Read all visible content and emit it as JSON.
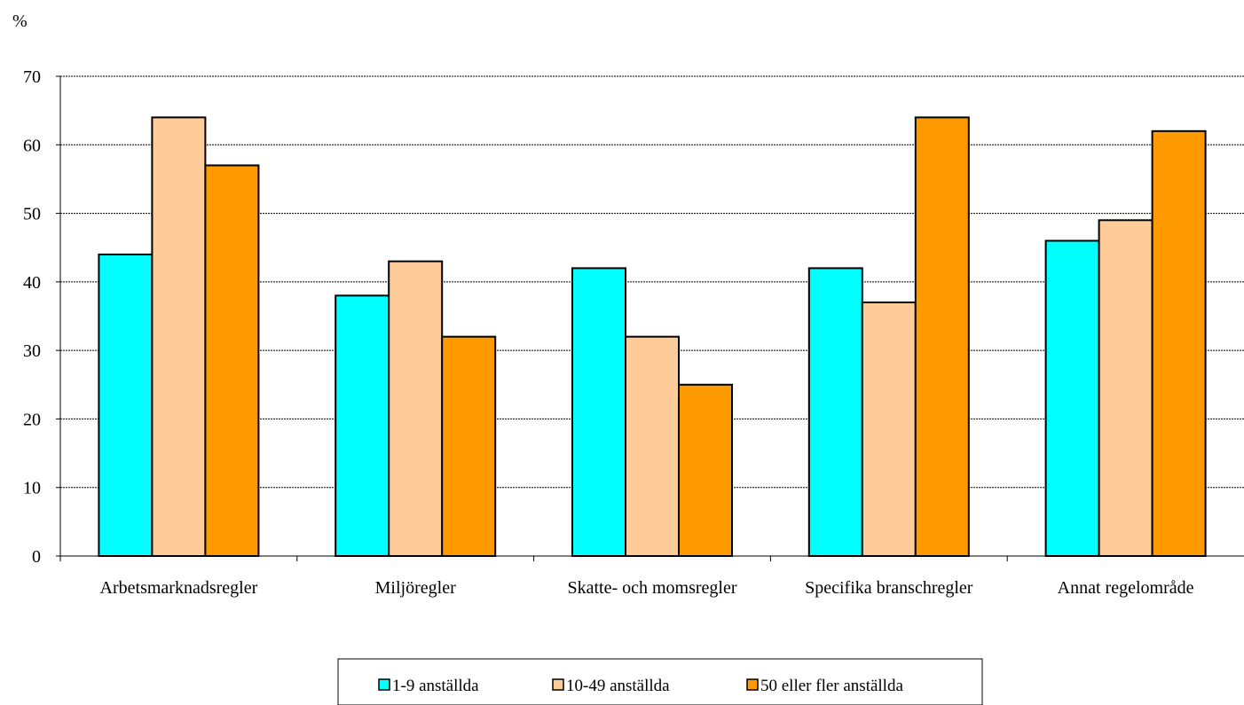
{
  "chart_data": {
    "type": "bar",
    "unit_label": "%",
    "categories": [
      "Arbetsmarknadsregler",
      "Miljöregler",
      "Skatte- och momsregler",
      "Specifika branschregler",
      "Annat regelområde"
    ],
    "series": [
      {
        "name": "1-9 anställda",
        "color": "#00FFFF",
        "values": [
          44,
          38,
          42,
          42,
          46
        ]
      },
      {
        "name": "10-49 anställda",
        "color": "#FFCC99",
        "values": [
          64,
          43,
          32,
          37,
          49
        ]
      },
      {
        "name": "50 eller fler anställda",
        "color": "#FF9900",
        "values": [
          57,
          32,
          25,
          64,
          62
        ]
      }
    ],
    "ylim": [
      0,
      70
    ],
    "yticks": [
      "0",
      "10",
      "20",
      "30",
      "40",
      "50",
      "60",
      "70"
    ],
    "grid": true,
    "legend_position": "bottom"
  }
}
